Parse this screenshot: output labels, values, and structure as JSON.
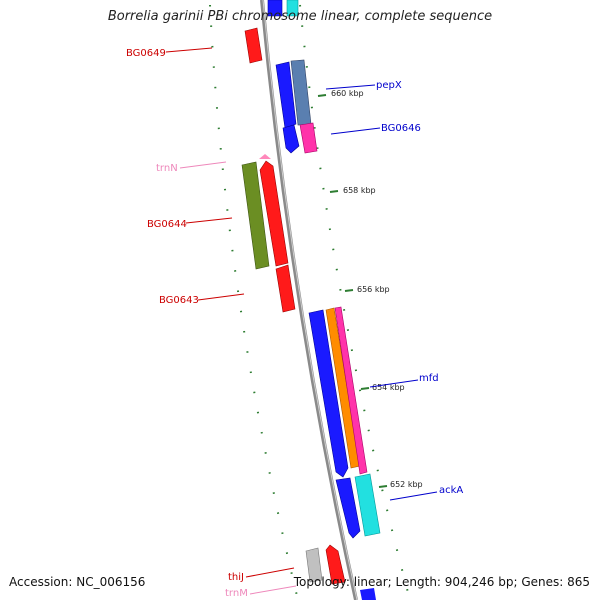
{
  "title": "Borrelia garinii PBi chromosome linear, complete sequence",
  "accession": "Accession: NC_006156",
  "topology": "Topology: linear; Length: 904,246 bp; Genes: 865",
  "colors": {
    "backbone": "#8a8a8a",
    "tick": "#2e7d32",
    "label_red": "#cc0000",
    "label_blue": "#0000cc",
    "label_pink": "#ee88bb"
  },
  "ticks": [
    "660 kbp",
    "658 kbp",
    "656 kbp",
    "654 kbp",
    "652 kbp"
  ],
  "gene_labels": {
    "bg0649": "BG0649",
    "pepx": "pepX",
    "bg0646": "BG0646",
    "trnn": "trnN",
    "bg0644": "BG0644",
    "bg0643": "BG0643",
    "mfd": "mfd",
    "acka": "ackA",
    "thij": "thiJ",
    "trnm": "trnM"
  }
}
